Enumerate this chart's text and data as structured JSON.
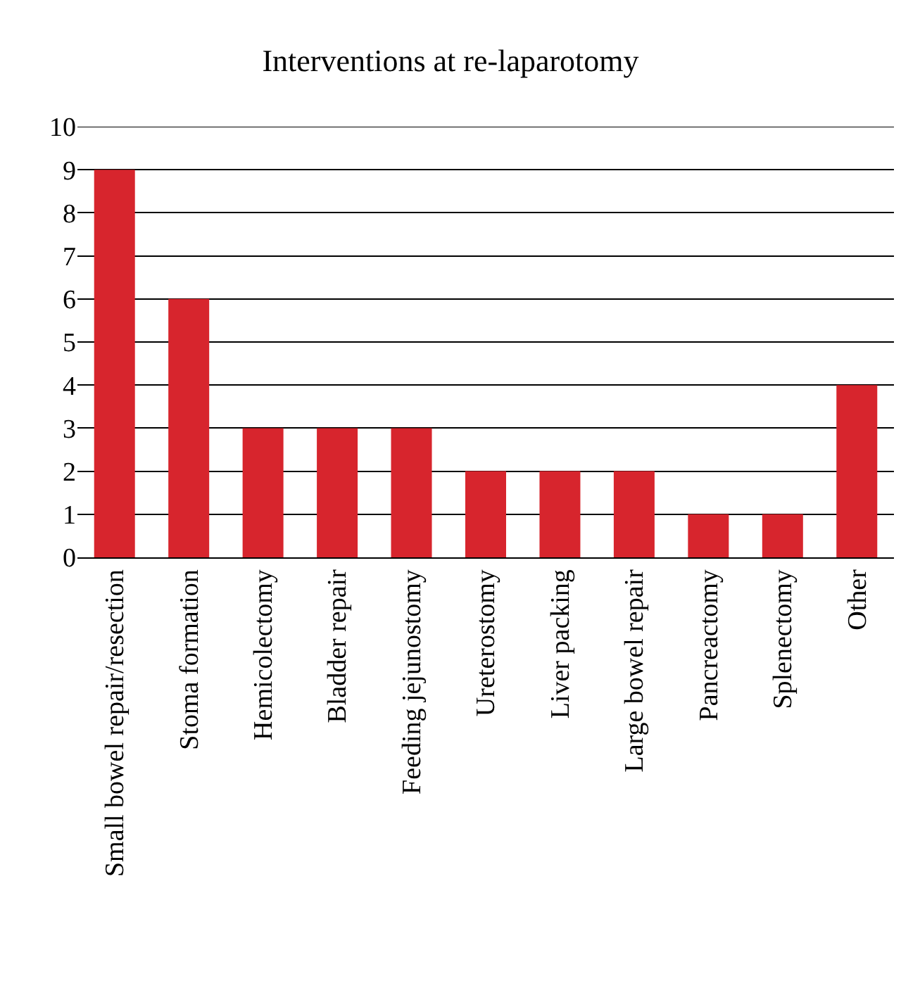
{
  "chart_data": {
    "type": "bar",
    "title": "Interventions at re-laparotomy",
    "categories": [
      "Small bowel repair/resection",
      "Stoma formation",
      "Hemicolectomy",
      "Bladder repair",
      "Feeding jejunostomy",
      "Ureterostomy",
      "Liver packing",
      "Large bowel repair",
      "Pancreactomy",
      "Splenectomy",
      "Other"
    ],
    "values": [
      9,
      6,
      3,
      3,
      3,
      2,
      2,
      2,
      1,
      1,
      4
    ],
    "color": "#d7252d",
    "ylim": [
      0,
      10
    ],
    "yticks": [
      0,
      1,
      2,
      3,
      4,
      5,
      6,
      7,
      8,
      9,
      10
    ],
    "grid": "y"
  }
}
